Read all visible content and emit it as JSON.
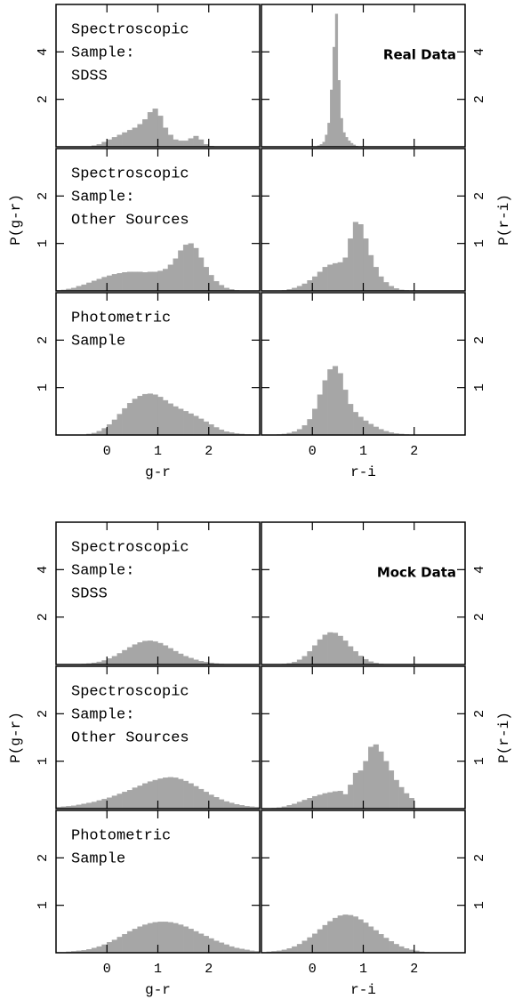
{
  "chart_data": [
    {
      "type": "histogram",
      "annotation": [
        "Spectroscopic",
        "Sample:",
        "SDSS"
      ],
      "xlim": [
        -1,
        3
      ],
      "ylim": [
        0,
        6
      ],
      "xticks": [
        0,
        1,
        2
      ],
      "yticks": [
        2,
        4
      ],
      "xtick_labels": false,
      "ytick_side": "left",
      "color": "#a6a6a6",
      "bins": [
        -0.3,
        -0.2,
        -0.1,
        0,
        0.1,
        0.2,
        0.3,
        0.4,
        0.5,
        0.6,
        0.7,
        0.8,
        0.9,
        1,
        1.1,
        1.2,
        1.3,
        1.4,
        1.5,
        1.6,
        1.7,
        1.8,
        1.9,
        2,
        2.1
      ],
      "values": [
        0.05,
        0.1,
        0.2,
        0.3,
        0.4,
        0.5,
        0.6,
        0.7,
        0.8,
        0.95,
        1.15,
        1.45,
        1.6,
        1.3,
        0.8,
        0.5,
        0.3,
        0.25,
        0.25,
        0.35,
        0.45,
        0.3,
        0.1,
        0.03
      ]
    },
    {
      "type": "histogram",
      "label": "Real Data",
      "xlim": [
        -1,
        3
      ],
      "ylim": [
        0,
        6
      ],
      "xticks": [
        0,
        1,
        2
      ],
      "yticks": [
        2,
        4
      ],
      "xtick_labels": false,
      "ytick_side": "right",
      "color": "#a6a6a6",
      "bins": [
        0.1,
        0.15,
        0.2,
        0.25,
        0.3,
        0.35,
        0.4,
        0.45,
        0.5,
        0.55,
        0.6,
        0.65,
        0.7,
        0.75,
        0.8,
        0.85,
        0.9
      ],
      "values": [
        0.05,
        0.1,
        0.2,
        0.5,
        1.0,
        2.4,
        4.2,
        5.6,
        2.8,
        1.2,
        0.6,
        0.4,
        0.25,
        0.15,
        0.08,
        0.03
      ]
    },
    {
      "type": "histogram",
      "annotation": [
        "Spectroscopic",
        "Sample:",
        "Other Sources"
      ],
      "ylabel": "P(g-r)",
      "xlim": [
        -1,
        3
      ],
      "ylim": [
        0,
        3
      ],
      "xticks": [
        0,
        1,
        2
      ],
      "yticks": [
        1,
        2
      ],
      "xtick_labels": false,
      "ytick_side": "left",
      "color": "#a6a6a6",
      "bins": [
        -1,
        -0.9,
        -0.8,
        -0.7,
        -0.6,
        -0.5,
        -0.4,
        -0.3,
        -0.2,
        -0.1,
        0,
        0.1,
        0.2,
        0.3,
        0.4,
        0.5,
        0.6,
        0.7,
        0.8,
        0.9,
        1,
        1.1,
        1.2,
        1.3,
        1.4,
        1.5,
        1.6,
        1.7,
        1.8,
        1.9,
        2,
        2.1,
        2.2,
        2.3,
        2.4,
        2.5,
        2.6
      ],
      "values": [
        0.01,
        0.02,
        0.04,
        0.06,
        0.1,
        0.13,
        0.17,
        0.21,
        0.25,
        0.29,
        0.32,
        0.35,
        0.37,
        0.39,
        0.4,
        0.4,
        0.4,
        0.39,
        0.4,
        0.4,
        0.42,
        0.46,
        0.55,
        0.68,
        0.85,
        0.97,
        1.0,
        0.9,
        0.7,
        0.5,
        0.33,
        0.2,
        0.12,
        0.06,
        0.03,
        0.01
      ]
    },
    {
      "type": "histogram",
      "ylabel": "P(r-i)",
      "xlim": [
        -1,
        3
      ],
      "ylim": [
        0,
        3
      ],
      "xticks": [
        0,
        1,
        2
      ],
      "yticks": [
        1,
        2
      ],
      "xtick_labels": false,
      "ytick_side": "right",
      "color": "#a6a6a6",
      "bins": [
        -0.6,
        -0.5,
        -0.4,
        -0.3,
        -0.2,
        -0.1,
        0,
        0.1,
        0.2,
        0.3,
        0.4,
        0.5,
        0.6,
        0.7,
        0.8,
        0.9,
        1,
        1.1,
        1.2,
        1.3,
        1.4,
        1.5,
        1.6,
        1.7,
        1.8,
        1.9
      ],
      "values": [
        0.01,
        0.03,
        0.06,
        0.1,
        0.15,
        0.22,
        0.3,
        0.4,
        0.5,
        0.55,
        0.58,
        0.6,
        0.7,
        1.1,
        1.45,
        1.4,
        1.1,
        0.75,
        0.5,
        0.3,
        0.18,
        0.1,
        0.05,
        0.02,
        0.01
      ]
    },
    {
      "type": "histogram",
      "annotation": [
        "Photometric",
        "Sample"
      ],
      "xlabel": "g-r",
      "xlim": [
        -1,
        3
      ],
      "ylim": [
        0,
        3
      ],
      "xticks": [
        0,
        1,
        2
      ],
      "yticks": [
        1,
        2
      ],
      "xtick_labels": true,
      "ytick_side": "left",
      "color": "#a6a6a6",
      "bins": [
        -0.4,
        -0.3,
        -0.2,
        -0.1,
        0,
        0.1,
        0.2,
        0.3,
        0.4,
        0.5,
        0.6,
        0.7,
        0.8,
        0.9,
        1,
        1.1,
        1.2,
        1.3,
        1.4,
        1.5,
        1.6,
        1.7,
        1.8,
        1.9,
        2,
        2.1,
        2.2,
        2.3,
        2.4,
        2.5,
        2.6,
        2.7,
        2.8,
        2.9
      ],
      "values": [
        0.02,
        0.04,
        0.08,
        0.14,
        0.22,
        0.32,
        0.44,
        0.56,
        0.67,
        0.76,
        0.82,
        0.86,
        0.87,
        0.85,
        0.8,
        0.73,
        0.66,
        0.6,
        0.55,
        0.5,
        0.45,
        0.4,
        0.34,
        0.28,
        0.22,
        0.16,
        0.11,
        0.07,
        0.05,
        0.03,
        0.02,
        0.01,
        0.01
      ]
    },
    {
      "type": "histogram",
      "xlabel": "r-i",
      "xlim": [
        -1,
        3
      ],
      "ylim": [
        0,
        3
      ],
      "xticks": [
        0,
        1,
        2
      ],
      "yticks": [
        1,
        2
      ],
      "xtick_labels": true,
      "ytick_side": "right",
      "color": "#a6a6a6",
      "bins": [
        -0.7,
        -0.6,
        -0.5,
        -0.4,
        -0.3,
        -0.2,
        -0.1,
        0,
        0.1,
        0.2,
        0.3,
        0.4,
        0.5,
        0.6,
        0.7,
        0.8,
        0.9,
        1,
        1.1,
        1.2,
        1.3,
        1.4,
        1.5,
        1.6,
        1.7,
        1.8,
        1.9
      ],
      "values": [
        0.01,
        0.02,
        0.04,
        0.07,
        0.12,
        0.2,
        0.33,
        0.55,
        0.85,
        1.15,
        1.38,
        1.45,
        1.3,
        0.95,
        0.65,
        0.48,
        0.38,
        0.3,
        0.23,
        0.17,
        0.12,
        0.08,
        0.05,
        0.03,
        0.02,
        0.01
      ]
    },
    {
      "type": "histogram",
      "annotation": [
        "Spectroscopic",
        "Sample:",
        "SDSS"
      ],
      "xlim": [
        -1,
        3
      ],
      "ylim": [
        0,
        6
      ],
      "xticks": [
        0,
        1,
        2
      ],
      "yticks": [
        2,
        4
      ],
      "xtick_labels": false,
      "ytick_side": "left",
      "color": "#a6a6a6",
      "bins": [
        -0.6,
        -0.5,
        -0.4,
        -0.3,
        -0.2,
        -0.1,
        0,
        0.1,
        0.2,
        0.3,
        0.4,
        0.5,
        0.6,
        0.7,
        0.8,
        0.9,
        1,
        1.1,
        1.2,
        1.3,
        1.4,
        1.5,
        1.6,
        1.7,
        1.8,
        1.9,
        2,
        2.1,
        2.2,
        2.3,
        2.4
      ],
      "values": [
        0.01,
        0.02,
        0.04,
        0.07,
        0.11,
        0.17,
        0.25,
        0.35,
        0.47,
        0.6,
        0.72,
        0.84,
        0.93,
        0.99,
        1.0,
        0.97,
        0.9,
        0.8,
        0.68,
        0.56,
        0.45,
        0.35,
        0.27,
        0.2,
        0.14,
        0.1,
        0.07,
        0.04,
        0.02,
        0.01
      ]
    },
    {
      "type": "histogram",
      "label": "Mock Data",
      "xlim": [
        -1,
        3
      ],
      "ylim": [
        0,
        6
      ],
      "xticks": [
        0,
        1,
        2
      ],
      "yticks": [
        2,
        4
      ],
      "xtick_labels": false,
      "ytick_side": "right",
      "color": "#a6a6a6",
      "bins": [
        -0.6,
        -0.5,
        -0.4,
        -0.3,
        -0.2,
        -0.1,
        0,
        0.1,
        0.2,
        0.3,
        0.4,
        0.5,
        0.6,
        0.7,
        0.8,
        0.9,
        1,
        1.1,
        1.2,
        1.3,
        1.4
      ],
      "values": [
        0.02,
        0.05,
        0.1,
        0.2,
        0.35,
        0.55,
        0.8,
        1.05,
        1.25,
        1.35,
        1.33,
        1.2,
        1.0,
        0.76,
        0.55,
        0.36,
        0.22,
        0.12,
        0.06,
        0.02
      ]
    },
    {
      "type": "histogram",
      "annotation": [
        "Spectroscopic",
        "Sample:",
        "Other Sources"
      ],
      "ylabel": "P(g-r)",
      "xlim": [
        -1,
        3
      ],
      "ylim": [
        0,
        3
      ],
      "xticks": [
        0,
        1,
        2
      ],
      "yticks": [
        1,
        2
      ],
      "xtick_labels": false,
      "ytick_side": "left",
      "color": "#a6a6a6",
      "bins": [
        -1,
        -0.9,
        -0.8,
        -0.7,
        -0.6,
        -0.5,
        -0.4,
        -0.3,
        -0.2,
        -0.1,
        0,
        0.1,
        0.2,
        0.3,
        0.4,
        0.5,
        0.6,
        0.7,
        0.8,
        0.9,
        1,
        1.1,
        1.2,
        1.3,
        1.4,
        1.5,
        1.6,
        1.7,
        1.8,
        1.9,
        2,
        2.1,
        2.2,
        2.3,
        2.4,
        2.5,
        2.6,
        2.7,
        2.8,
        2.9,
        3
      ],
      "values": [
        0.03,
        0.04,
        0.05,
        0.06,
        0.08,
        0.1,
        0.12,
        0.14,
        0.17,
        0.2,
        0.23,
        0.27,
        0.31,
        0.35,
        0.39,
        0.44,
        0.48,
        0.53,
        0.57,
        0.6,
        0.63,
        0.65,
        0.66,
        0.65,
        0.62,
        0.58,
        0.53,
        0.47,
        0.41,
        0.35,
        0.29,
        0.24,
        0.19,
        0.15,
        0.12,
        0.09,
        0.07,
        0.05,
        0.04,
        0.03
      ]
    },
    {
      "type": "histogram",
      "ylabel": "P(r-i)",
      "xlim": [
        -1,
        3
      ],
      "ylim": [
        0,
        3
      ],
      "xticks": [
        0,
        1,
        2
      ],
      "yticks": [
        1,
        2
      ],
      "xtick_labels": false,
      "ytick_side": "right",
      "color": "#a6a6a6",
      "bins": [
        -0.8,
        -0.7,
        -0.6,
        -0.5,
        -0.4,
        -0.3,
        -0.2,
        -0.1,
        0,
        0.1,
        0.2,
        0.3,
        0.4,
        0.5,
        0.6,
        0.7,
        0.8,
        0.9,
        1,
        1.1,
        1.2,
        1.3,
        1.4,
        1.5,
        1.6,
        1.7,
        1.8,
        1.9,
        2
      ],
      "values": [
        0.01,
        0.02,
        0.04,
        0.07,
        0.1,
        0.14,
        0.18,
        0.22,
        0.26,
        0.29,
        0.32,
        0.34,
        0.36,
        0.37,
        0.3,
        0.5,
        0.75,
        0.8,
        1.0,
        1.3,
        1.35,
        1.2,
        1.0,
        0.8,
        0.6,
        0.45,
        0.32,
        0.22
      ]
    },
    {
      "type": "histogram",
      "annotation": [
        "Photometric",
        "Sample"
      ],
      "xlabel": "g-r",
      "xlim": [
        -1,
        3
      ],
      "ylim": [
        0,
        3
      ],
      "xticks": [
        0,
        1,
        2
      ],
      "yticks": [
        1,
        2
      ],
      "xtick_labels": true,
      "ytick_side": "left",
      "color": "#a6a6a6",
      "bins": [
        -1,
        -0.9,
        -0.8,
        -0.7,
        -0.6,
        -0.5,
        -0.4,
        -0.3,
        -0.2,
        -0.1,
        0,
        0.1,
        0.2,
        0.3,
        0.4,
        0.5,
        0.6,
        0.7,
        0.8,
        0.9,
        1,
        1.1,
        1.2,
        1.3,
        1.4,
        1.5,
        1.6,
        1.7,
        1.8,
        1.9,
        2,
        2.1,
        2.2,
        2.3,
        2.4,
        2.5,
        2.6,
        2.7,
        2.8,
        2.9,
        3
      ],
      "values": [
        0.01,
        0.01,
        0.02,
        0.03,
        0.04,
        0.05,
        0.07,
        0.1,
        0.13,
        0.17,
        0.22,
        0.27,
        0.33,
        0.39,
        0.45,
        0.5,
        0.55,
        0.59,
        0.62,
        0.64,
        0.65,
        0.65,
        0.64,
        0.62,
        0.59,
        0.55,
        0.5,
        0.45,
        0.4,
        0.35,
        0.3,
        0.25,
        0.21,
        0.17,
        0.13,
        0.1,
        0.08,
        0.06,
        0.04,
        0.03
      ]
    },
    {
      "type": "histogram",
      "xlabel": "r-i",
      "xlim": [
        -1,
        3
      ],
      "ylim": [
        0,
        3
      ],
      "xticks": [
        0,
        1,
        2
      ],
      "yticks": [
        1,
        2
      ],
      "xtick_labels": true,
      "ytick_side": "right",
      "color": "#a6a6a6",
      "bins": [
        -1,
        -0.9,
        -0.8,
        -0.7,
        -0.6,
        -0.5,
        -0.4,
        -0.3,
        -0.2,
        -0.1,
        0,
        0.1,
        0.2,
        0.3,
        0.4,
        0.5,
        0.6,
        0.7,
        0.8,
        0.9,
        1,
        1.1,
        1.2,
        1.3,
        1.4,
        1.5,
        1.6,
        1.7,
        1.8,
        1.9,
        2,
        2.1,
        2.2,
        2.3
      ],
      "values": [
        0.01,
        0.02,
        0.03,
        0.04,
        0.06,
        0.09,
        0.13,
        0.18,
        0.25,
        0.32,
        0.4,
        0.49,
        0.58,
        0.66,
        0.73,
        0.78,
        0.8,
        0.79,
        0.76,
        0.7,
        0.63,
        0.55,
        0.47,
        0.39,
        0.31,
        0.24,
        0.18,
        0.13,
        0.09,
        0.06,
        0.04,
        0.02,
        0.01
      ]
    }
  ]
}
